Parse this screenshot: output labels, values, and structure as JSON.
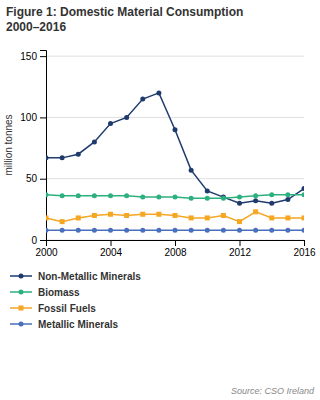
{
  "chart_data": {
    "type": "line",
    "title": "Figure 1: Domestic Material Consumption\n2000–2016",
    "y_label": "million tonnes",
    "source": "Source: CSO Ireland",
    "x": [
      2000,
      2001,
      2002,
      2003,
      2004,
      2005,
      2006,
      2007,
      2008,
      2009,
      2010,
      2011,
      2012,
      2013,
      2014,
      2015,
      2016
    ],
    "series": [
      {
        "name": "Non-Metallic Minerals",
        "color": "#1f3b6e",
        "marker": "circle",
        "values": [
          67,
          67,
          70,
          80,
          95,
          100,
          115,
          120,
          90,
          57,
          40,
          35,
          30,
          32,
          30,
          33,
          42
        ]
      },
      {
        "name": "Biomass",
        "color": "#2cb07e",
        "marker": "circle",
        "values": [
          37,
          36,
          36,
          36,
          36,
          36,
          35,
          35,
          35,
          34,
          34,
          34,
          35,
          36,
          37,
          37,
          37
        ]
      },
      {
        "name": "Fossil Fuels",
        "color": "#f5a623",
        "marker": "square",
        "values": [
          18,
          15,
          18,
          20,
          21,
          20,
          21,
          21,
          20,
          18,
          18,
          20,
          15,
          23,
          18,
          18,
          18
        ]
      },
      {
        "name": "Metallic Minerals",
        "color": "#4a6fbe",
        "marker": "circle",
        "values": [
          8,
          8,
          8,
          8,
          8,
          8,
          8,
          8,
          8,
          8,
          8,
          8,
          8,
          8,
          8,
          8,
          8
        ]
      }
    ],
    "xlim": [
      2000,
      2016
    ],
    "xticks": [
      2000,
      2004,
      2008,
      2012,
      2016
    ],
    "ylim": [
      0,
      155
    ],
    "yticks": [
      0,
      50,
      100,
      150
    ],
    "grid": "y",
    "legend": "bottom"
  }
}
